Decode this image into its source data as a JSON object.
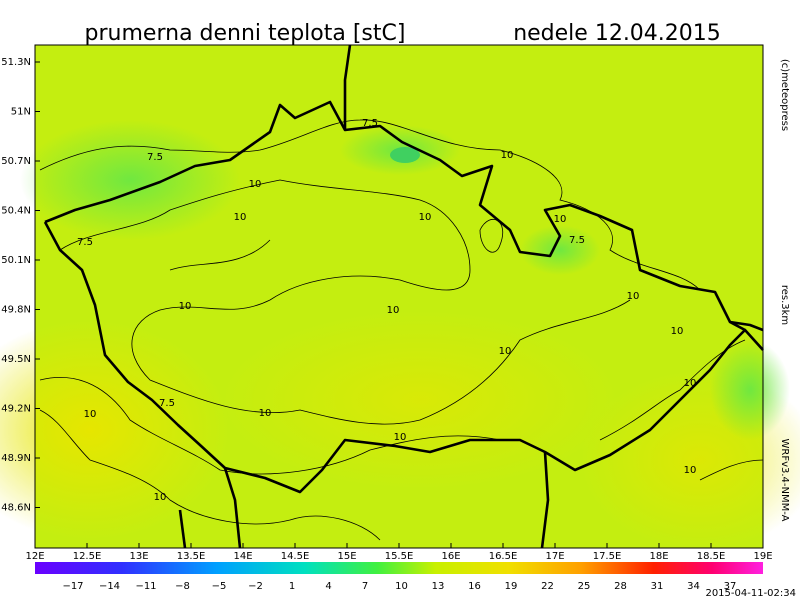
{
  "map": {
    "title": "prumerna denni teplota [stC]",
    "date": "nedele 12.04.2015",
    "lat_labels": [
      "51.3N",
      "51N",
      "50.7N",
      "50.4N",
      "50.1N",
      "49.8N",
      "49.5N",
      "49.2N",
      "48.9N",
      "48.6N"
    ],
    "lon_labels": [
      "12E",
      "12.5E",
      "13E",
      "13.5E",
      "14E",
      "14.5E",
      "15E",
      "15.5E",
      "16E",
      "16.5E",
      "17E",
      "17.5E",
      "18E",
      "18.5E",
      "19E"
    ],
    "colorbar_labels": [
      "−17",
      "−14",
      "−11",
      "−8",
      "−5",
      "−2",
      "1",
      "4",
      "7",
      "10",
      "13",
      "16",
      "19",
      "22",
      "25",
      "28",
      "31",
      "34",
      "37"
    ],
    "contour_labels": [
      "7.5",
      "7.5",
      "10",
      "10",
      "7.5",
      "10",
      "10",
      "10",
      "7.5",
      "10",
      "10",
      "10",
      "10",
      "10",
      "10",
      "7.5",
      "10",
      "10",
      "10",
      "10",
      "10"
    ],
    "copyright": "(c)meteopress",
    "resolution": "res.3km",
    "model": "WRFv3.4-NMM-A",
    "timestamp": "2015-04-11-02:34"
  }
}
